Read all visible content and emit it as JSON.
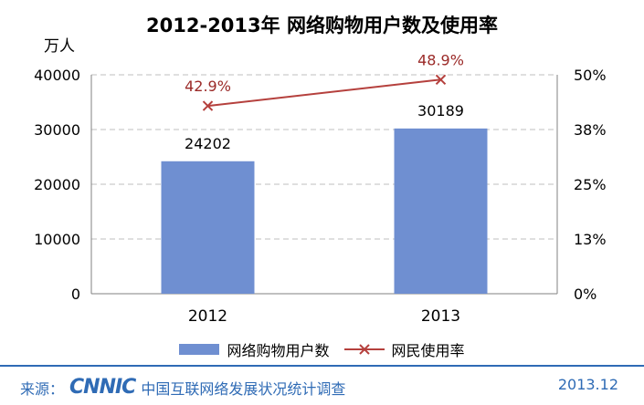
{
  "colors": {
    "bar": "#6f8fd1",
    "line": "#b5403d",
    "point_label": "#9b2a28",
    "footer": "#2f6bb5"
  },
  "unit_label": "万人",
  "footer": {
    "source_label": "来源：",
    "logo_text": "CNNIC",
    "survey_text": "中国互联网络发展状况统计调查",
    "date": "2013.12"
  },
  "chart_data": {
    "type": "bar",
    "title": "2012-2013年 网络购物用户数及使用率",
    "categories": [
      "2012",
      "2013"
    ],
    "series": [
      {
        "name": "网络购物用户数",
        "type": "bar",
        "axis": "left",
        "values": [
          24202,
          30189
        ],
        "labels": [
          "24202",
          "30189"
        ]
      },
      {
        "name": "网民使用率",
        "type": "line",
        "axis": "right",
        "values": [
          42.9,
          48.9
        ],
        "labels": [
          "42.9%",
          "48.9%"
        ]
      }
    ],
    "ylim": [
      0,
      40000
    ],
    "yticks": [
      "0",
      "10000",
      "20000",
      "30000",
      "40000"
    ],
    "y2lim": [
      0,
      50
    ],
    "y2ticks": [
      "0%",
      "13%",
      "25%",
      "38%",
      "50%"
    ],
    "grid": true,
    "legend": "bottom"
  }
}
